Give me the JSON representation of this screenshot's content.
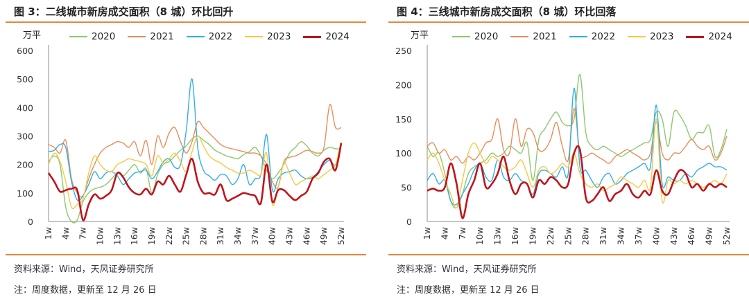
{
  "colors": {
    "2020": "#8cc96c",
    "2021": "#ea8c58",
    "2022": "#31aee8",
    "2023": "#f7c843",
    "2024": "#c0141c",
    "rule": "#e5873a",
    "axis": "#8c8c8c"
  },
  "panels": [
    {
      "title": "图 3：二线城市新房成交面积（8 城）环比回升",
      "unit": "万平",
      "source": "资料来源：Wind，天风证券研究所",
      "note": "注：周度数据，更新至 12 月 26 日"
    },
    {
      "title": "图 4：三线城市新房成交面积（8 城）环比回落",
      "unit": "万平",
      "source": "资料来源：Wind，天风证券研究所",
      "note": "注：周度数据，更新至 12 月 26 日"
    }
  ],
  "chart_data": [
    {
      "type": "line",
      "title": "图 3：二线城市新房成交面积（8 城）环比回升",
      "ylabel": "万平",
      "ylim": [
        0,
        600
      ],
      "yticks": [
        0,
        100,
        200,
        300,
        400,
        500,
        600
      ],
      "x": [
        "1w",
        "2w",
        "3w",
        "4w",
        "5w",
        "6w",
        "7w",
        "8w",
        "9w",
        "10w",
        "11w",
        "12w",
        "13w",
        "14w",
        "15w",
        "16w",
        "17w",
        "18w",
        "19w",
        "20w",
        "21w",
        "22w",
        "23w",
        "24w",
        "25w",
        "26w",
        "27w",
        "28w",
        "29w",
        "30w",
        "31w",
        "32w",
        "33w",
        "34w",
        "35w",
        "36w",
        "37w",
        "38w",
        "39w",
        "40w",
        "41w",
        "42w",
        "43w",
        "44w",
        "45w",
        "46w",
        "47w",
        "48w",
        "49w",
        "50w",
        "51w",
        "52w"
      ],
      "xticks": [
        "1w",
        "4w",
        "7w",
        "10w",
        "13w",
        "16w",
        "19w",
        "22w",
        "25w",
        "28w",
        "31w",
        "34w",
        "37w",
        "40w",
        "43w",
        "46w",
        "49w",
        "52w"
      ],
      "legend": "top",
      "series": [
        {
          "name": "2020",
          "values": [
            210,
            230,
            200,
            50,
            0,
            5,
            70,
            100,
            115,
            120,
            130,
            150,
            170,
            160,
            180,
            200,
            170,
            185,
            100,
            165,
            200,
            210,
            230,
            250,
            265,
            290,
            300,
            285,
            270,
            250,
            240,
            230,
            225,
            220,
            235,
            245,
            260,
            230,
            180,
            150,
            170,
            200,
            240,
            260,
            280,
            265,
            240,
            230,
            250,
            260,
            255,
            255
          ]
        },
        {
          "name": "2021",
          "values": [
            270,
            260,
            240,
            285,
            150,
            100,
            90,
            150,
            200,
            240,
            260,
            270,
            280,
            275,
            260,
            280,
            230,
            285,
            200,
            300,
            260,
            310,
            330,
            280,
            240,
            280,
            350,
            330,
            310,
            290,
            270,
            260,
            255,
            250,
            245,
            240,
            240,
            230,
            200,
            140,
            120,
            210,
            225,
            230,
            240,
            250,
            245,
            240,
            260,
            410,
            330,
            330
          ]
        },
        {
          "name": "2022",
          "values": [
            245,
            250,
            270,
            260,
            140,
            75,
            90,
            130,
            175,
            150,
            170,
            175,
            160,
            130,
            150,
            170,
            175,
            180,
            150,
            175,
            210,
            220,
            190,
            200,
            320,
            500,
            260,
            180,
            160,
            145,
            165,
            160,
            130,
            150,
            200,
            130,
            150,
            165,
            305,
            110,
            150,
            170,
            175,
            180,
            160,
            150,
            155,
            175,
            200,
            215,
            200,
            270
          ]
        },
        {
          "name": "2023",
          "values": [
            200,
            240,
            210,
            140,
            50,
            60,
            80,
            170,
            230,
            200,
            180,
            175,
            200,
            210,
            220,
            215,
            210,
            200,
            160,
            230,
            205,
            220,
            240,
            210,
            175,
            245,
            300,
            265,
            230,
            215,
            205,
            190,
            180,
            170,
            170,
            180,
            170,
            165,
            240,
            60,
            120,
            205,
            170,
            130,
            140,
            150,
            160,
            150,
            165,
            180,
            200,
            280
          ]
        },
        {
          "name": "2024",
          "values": [
            170,
            140,
            105,
            110,
            115,
            110,
            5,
            60,
            95,
            80,
            90,
            110,
            170,
            155,
            120,
            100,
            95,
            115,
            95,
            140,
            130,
            160,
            130,
            105,
            165,
            220,
            140,
            100,
            100,
            95,
            130,
            75,
            80,
            90,
            100,
            95,
            90,
            65,
            200,
            70,
            110,
            110,
            90,
            75,
            90,
            105,
            150,
            170,
            210,
            220,
            180,
            275
          ]
        }
      ]
    },
    {
      "type": "line",
      "title": "图 4：三线城市新房成交面积（8 城）环比回落",
      "ylabel": "万平",
      "ylim": [
        0,
        250
      ],
      "yticks": [
        0,
        50,
        100,
        150,
        200,
        250
      ],
      "x": [
        "1w",
        "2w",
        "3w",
        "4w",
        "5w",
        "6w",
        "7w",
        "8w",
        "9w",
        "10w",
        "11w",
        "12w",
        "13w",
        "14w",
        "15w",
        "16w",
        "17w",
        "18w",
        "19w",
        "20w",
        "21w",
        "22w",
        "23w",
        "24w",
        "25w",
        "26w",
        "27w",
        "28w",
        "29w",
        "30w",
        "31w",
        "32w",
        "33w",
        "34w",
        "35w",
        "36w",
        "37w",
        "38w",
        "39w",
        "40w",
        "41w",
        "42w",
        "43w",
        "44w",
        "45w",
        "46w",
        "47w",
        "48w",
        "49w",
        "50w",
        "51w",
        "52w"
      ],
      "xticks": [
        "1w",
        "4w",
        "7w",
        "10w",
        "13w",
        "16w",
        "19w",
        "22w",
        "25w",
        "28w",
        "31w",
        "34w",
        "37w",
        "40w",
        "43w",
        "46w",
        "49w",
        "52w"
      ],
      "legend": "top",
      "series": [
        {
          "name": "2020",
          "values": [
            110,
            95,
            100,
            70,
            30,
            20,
            40,
            70,
            80,
            85,
            90,
            100,
            95,
            100,
            110,
            105,
            100,
            115,
            60,
            120,
            135,
            150,
            160,
            145,
            140,
            150,
            215,
            130,
            110,
            105,
            110,
            105,
            100,
            95,
            100,
            105,
            110,
            115,
            120,
            160,
            150,
            110,
            160,
            155,
            140,
            120,
            130,
            130,
            140,
            95,
            105,
            135
          ]
        },
        {
          "name": "2021",
          "values": [
            110,
            115,
            100,
            105,
            90,
            95,
            85,
            95,
            90,
            100,
            115,
            120,
            150,
            105,
            100,
            150,
            110,
            135,
            130,
            105,
            105,
            120,
            145,
            110,
            90,
            165,
            100,
            95,
            100,
            95,
            90,
            85,
            95,
            100,
            105,
            100,
            95,
            90,
            100,
            145,
            100,
            90,
            100,
            100,
            110,
            120,
            110,
            105,
            110,
            90,
            100,
            125
          ]
        },
        {
          "name": "2022",
          "values": [
            60,
            70,
            55,
            60,
            30,
            25,
            40,
            55,
            75,
            85,
            65,
            60,
            90,
            65,
            60,
            70,
            60,
            55,
            40,
            70,
            75,
            70,
            65,
            80,
            70,
            195,
            80,
            75,
            60,
            50,
            65,
            70,
            55,
            60,
            70,
            75,
            80,
            85,
            80,
            170,
            55,
            65,
            60,
            60,
            70,
            65,
            75,
            80,
            85,
            80,
            80,
            75
          ]
        },
        {
          "name": "2023",
          "values": [
            90,
            100,
            85,
            60,
            40,
            20,
            60,
            100,
            115,
            100,
            85,
            95,
            90,
            80,
            75,
            80,
            90,
            70,
            50,
            75,
            80,
            70,
            75,
            85,
            80,
            100,
            70,
            55,
            50,
            55,
            45,
            50,
            55,
            65,
            60,
            55,
            50,
            60,
            50,
            150,
            30,
            60,
            55,
            60,
            55,
            60,
            55,
            50,
            55,
            60,
            55,
            70
          ]
        },
        {
          "name": "2024",
          "values": [
            45,
            48,
            45,
            50,
            85,
            55,
            5,
            40,
            60,
            85,
            50,
            55,
            70,
            95,
            60,
            40,
            55,
            55,
            35,
            60,
            55,
            65,
            60,
            50,
            55,
            100,
            105,
            35,
            30,
            40,
            50,
            30,
            40,
            45,
            55,
            40,
            35,
            45,
            40,
            75,
            45,
            40,
            60,
            75,
            70,
            50,
            55,
            45,
            55,
            50,
            55,
            50
          ]
        }
      ]
    }
  ]
}
